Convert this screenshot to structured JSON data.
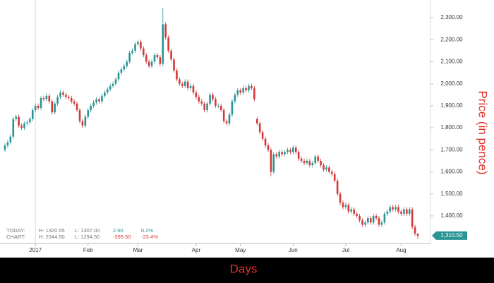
{
  "chart_data": {
    "type": "candlestick",
    "y_axis_label": "Price (in pence)",
    "x_axis_label": "Days",
    "up_color": "#2a9494",
    "down_color": "#d23a3a",
    "categories": [
      null,
      null,
      null,
      null,
      null,
      null,
      null,
      null,
      null,
      null,
      null,
      "2017",
      null,
      null,
      null,
      null,
      null,
      null,
      null,
      null,
      null,
      null,
      null,
      null,
      null,
      null,
      null,
      null,
      null,
      null,
      "Feb",
      null,
      null,
      null,
      null,
      null,
      null,
      null,
      null,
      null,
      null,
      null,
      null,
      null,
      null,
      null,
      null,
      null,
      "Mar",
      null,
      null,
      null,
      null,
      null,
      null,
      null,
      null,
      null,
      null,
      null,
      null,
      null,
      null,
      null,
      null,
      null,
      null,
      null,
      null,
      "Apr",
      null,
      null,
      null,
      null,
      null,
      null,
      null,
      null,
      null,
      null,
      null,
      null,
      null,
      null,
      null,
      "May",
      null,
      null,
      null,
      null,
      null,
      null,
      null,
      null,
      null,
      null,
      null,
      null,
      null,
      null,
      null,
      null,
      null,
      null,
      "Jun",
      null,
      null,
      null,
      null,
      null,
      null,
      null,
      null,
      null,
      null,
      null,
      null,
      null,
      null,
      null,
      null,
      null,
      null,
      "Jul",
      null,
      null,
      null,
      null,
      null,
      null,
      null,
      null,
      null,
      null,
      null,
      null,
      null,
      null,
      null,
      null,
      null,
      null,
      null,
      "Aug",
      null,
      null,
      null,
      null,
      null,
      null
    ],
    "open": [
      1700,
      1720,
      1735,
      1760,
      1840,
      1850,
      1810,
      1800,
      1820,
      1825,
      1840,
      1880,
      1900,
      1890,
      1935,
      1930,
      1945,
      1920,
      1870,
      1910,
      1940,
      1960,
      1950,
      1940,
      1935,
      1920,
      1910,
      1880,
      1830,
      1810,
      1850,
      1880,
      1900,
      1915,
      1930,
      1920,
      1945,
      1960,
      1975,
      1990,
      2000,
      2020,
      2050,
      2065,
      2080,
      2100,
      2140,
      2150,
      2180,
      2190,
      2160,
      2130,
      2100,
      2080,
      2100,
      2130,
      2120,
      2090,
      2270,
      2210,
      2150,
      2110,
      2060,
      2020,
      2000,
      1990,
      2010,
      1980,
      1990,
      1960,
      1940,
      1920,
      1910,
      1880,
      1910,
      1950,
      1930,
      1900,
      1900,
      1880,
      1830,
      1820,
      1860,
      1920,
      1950,
      1970,
      1960,
      1980,
      1970,
      1990,
      1980,
      1840,
      1820,
      1780,
      1750,
      1720,
      1700,
      1600,
      1680,
      1670,
      1690,
      1680,
      1690,
      1700,
      1690,
      1710,
      1690,
      1660,
      1650,
      1640,
      1650,
      1630,
      1640,
      1670,
      1650,
      1630,
      1610,
      1620,
      1600,
      1590,
      1560,
      1500,
      1460,
      1440,
      1450,
      1420,
      1430,
      1410,
      1400,
      1380,
      1360,
      1370,
      1390,
      1370,
      1400,
      1390,
      1360,
      1370,
      1410,
      1420,
      1440,
      1430,
      1440,
      1420,
      1410,
      1430,
      1410,
      1430,
      1350,
      1320
    ],
    "high": [
      1730,
      1745,
      1770,
      1850,
      1860,
      1860,
      1820,
      1830,
      1835,
      1850,
      1890,
      1910,
      1910,
      1945,
      1945,
      1955,
      1955,
      1930,
      1920,
      1950,
      1970,
      1970,
      1960,
      1950,
      1945,
      1930,
      1920,
      1890,
      1840,
      1860,
      1890,
      1910,
      1925,
      1940,
      1940,
      1955,
      1970,
      1985,
      2000,
      2010,
      2030,
      2060,
      2075,
      2090,
      2110,
      2150,
      2160,
      2190,
      2200,
      2200,
      2170,
      2140,
      2110,
      2110,
      2140,
      2140,
      2130,
      2345,
      2280,
      2220,
      2160,
      2120,
      2070,
      2030,
      2010,
      2020,
      2020,
      2000,
      2000,
      1970,
      1950,
      1930,
      1920,
      1920,
      1960,
      1960,
      1940,
      1910,
      1910,
      1890,
      1840,
      1870,
      1930,
      1960,
      1980,
      1980,
      1990,
      1990,
      2000,
      2000,
      1990,
      1850,
      1830,
      1790,
      1760,
      1730,
      1710,
      1690,
      1690,
      1700,
      1700,
      1700,
      1710,
      1710,
      1720,
      1720,
      1700,
      1670,
      1660,
      1660,
      1660,
      1650,
      1680,
      1680,
      1660,
      1640,
      1630,
      1630,
      1610,
      1600,
      1570,
      1510,
      1470,
      1460,
      1460,
      1440,
      1440,
      1420,
      1410,
      1390,
      1380,
      1400,
      1400,
      1410,
      1410,
      1400,
      1380,
      1420,
      1430,
      1450,
      1450,
      1450,
      1450,
      1430,
      1440,
      1440,
      1440,
      1440,
      1360,
      1321
    ],
    "low": [
      1690,
      1710,
      1725,
      1750,
      1830,
      1800,
      1790,
      1790,
      1810,
      1815,
      1830,
      1870,
      1880,
      1880,
      1920,
      1920,
      1910,
      1860,
      1860,
      1900,
      1930,
      1940,
      1930,
      1925,
      1910,
      1900,
      1870,
      1820,
      1800,
      1800,
      1840,
      1870,
      1890,
      1905,
      1910,
      1910,
      1935,
      1950,
      1965,
      1980,
      1990,
      2010,
      2040,
      2055,
      2070,
      2090,
      2130,
      2140,
      2170,
      2150,
      2120,
      2090,
      2070,
      2070,
      2090,
      2110,
      2080,
      2080,
      2200,
      2140,
      2100,
      2050,
      2010,
      1990,
      1980,
      1980,
      1970,
      1970,
      1950,
      1930,
      1910,
      1900,
      1870,
      1870,
      1900,
      1920,
      1890,
      1890,
      1870,
      1820,
      1810,
      1810,
      1850,
      1910,
      1940,
      1950,
      1950,
      1960,
      1960,
      1970,
      1920,
      1810,
      1770,
      1740,
      1710,
      1690,
      1580,
      1590,
      1660,
      1660,
      1670,
      1670,
      1680,
      1680,
      1680,
      1680,
      1650,
      1640,
      1630,
      1630,
      1620,
      1620,
      1630,
      1640,
      1620,
      1600,
      1600,
      1590,
      1580,
      1550,
      1490,
      1450,
      1430,
      1430,
      1410,
      1410,
      1400,
      1390,
      1370,
      1350,
      1350,
      1360,
      1360,
      1360,
      1380,
      1350,
      1350,
      1360,
      1400,
      1410,
      1420,
      1420,
      1410,
      1400,
      1400,
      1400,
      1400,
      1340,
      1310,
      1295
    ],
    "close": [
      1720,
      1735,
      1760,
      1840,
      1850,
      1810,
      1800,
      1820,
      1825,
      1840,
      1880,
      1900,
      1890,
      1935,
      1930,
      1945,
      1920,
      1870,
      1910,
      1940,
      1960,
      1950,
      1940,
      1935,
      1920,
      1910,
      1880,
      1830,
      1810,
      1850,
      1880,
      1900,
      1915,
      1930,
      1920,
      1945,
      1960,
      1975,
      1990,
      2000,
      2020,
      2050,
      2065,
      2080,
      2100,
      2140,
      2150,
      2180,
      2190,
      2160,
      2130,
      2100,
      2080,
      2100,
      2130,
      2120,
      2090,
      2270,
      2210,
      2150,
      2110,
      2060,
      2020,
      2000,
      1990,
      2010,
      1980,
      1990,
      1960,
      1940,
      1920,
      1910,
      1880,
      1910,
      1950,
      1930,
      1900,
      1900,
      1880,
      1830,
      1820,
      1860,
      1920,
      1950,
      1970,
      1960,
      1980,
      1970,
      1990,
      1980,
      1930,
      1820,
      1780,
      1750,
      1720,
      1700,
      1600,
      1680,
      1670,
      1690,
      1680,
      1690,
      1700,
      1690,
      1710,
      1690,
      1660,
      1650,
      1640,
      1650,
      1630,
      1640,
      1670,
      1650,
      1630,
      1610,
      1620,
      1600,
      1590,
      1560,
      1500,
      1460,
      1440,
      1450,
      1420,
      1430,
      1410,
      1400,
      1380,
      1360,
      1370,
      1390,
      1370,
      1400,
      1390,
      1360,
      1370,
      1410,
      1420,
      1440,
      1430,
      1440,
      1420,
      1410,
      1430,
      1410,
      1430,
      1350,
      1320,
      1310
    ],
    "ylim": [
      1275,
      2365
    ],
    "yticks": [
      {
        "value": 1400,
        "label": "1,400.00"
      },
      {
        "value": 1500,
        "label": "1,500.00"
      },
      {
        "value": 1600,
        "label": "1,600.00"
      },
      {
        "value": 1700,
        "label": "1,700.00"
      },
      {
        "value": 1800,
        "label": "1,800.00"
      },
      {
        "value": 1900,
        "label": "1,900.00"
      },
      {
        "value": 2000,
        "label": "2,000.00"
      },
      {
        "value": 2100,
        "label": "2,100.00"
      },
      {
        "value": 2200,
        "label": "2,200.00"
      },
      {
        "value": 2300,
        "label": "2,300.00"
      }
    ],
    "last_price": {
      "value": 1310.5,
      "label": "1,310.50"
    },
    "grid": false,
    "summary": {
      "today": [
        "TODAY:",
        "H: 1320.55",
        "L: 1307.00",
        "2.60",
        "0.2%"
      ],
      "chart": [
        "CHART:",
        "H: 2344.50",
        "L: 1294.50",
        "-399.50",
        "-23.4%"
      ]
    }
  }
}
